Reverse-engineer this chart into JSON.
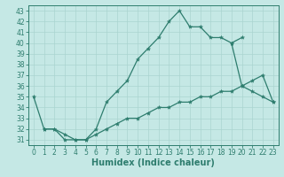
{
  "xlabel": "Humidex (Indice chaleur)",
  "bg_color": "#c5e8e5",
  "line_color": "#2e7d6e",
  "grid_color": "#aad4d0",
  "xlim": [
    -0.5,
    23.5
  ],
  "ylim": [
    30.5,
    43.5
  ],
  "yticks": [
    31,
    32,
    33,
    34,
    35,
    36,
    37,
    38,
    39,
    40,
    41,
    42,
    43
  ],
  "xticks": [
    0,
    1,
    2,
    3,
    4,
    5,
    6,
    7,
    8,
    9,
    10,
    11,
    12,
    13,
    14,
    15,
    16,
    17,
    18,
    19,
    20,
    21,
    22,
    23
  ],
  "lines": [
    {
      "x": [
        0,
        1,
        2,
        3,
        4,
        5,
        6,
        7,
        8,
        9,
        10,
        11,
        12,
        13,
        14,
        15,
        16,
        17,
        18,
        19,
        20
      ],
      "y": [
        35,
        32,
        32,
        31,
        31,
        31,
        32,
        34.5,
        35.5,
        36.5,
        38.5,
        39.5,
        40.5,
        42,
        43,
        41.5,
        41.5,
        40.5,
        40.5,
        40,
        40.5
      ]
    },
    {
      "x": [
        19,
        20,
        21,
        22,
        23
      ],
      "y": [
        40,
        36,
        35.5,
        35,
        34.5
      ]
    },
    {
      "x": [
        1,
        2,
        3,
        4,
        5,
        6,
        7,
        8,
        9,
        10,
        11,
        12,
        13,
        14,
        15,
        16,
        17,
        18,
        19,
        20,
        21,
        22,
        23
      ],
      "y": [
        32,
        32,
        31.5,
        31,
        31,
        31.5,
        32,
        32.5,
        33,
        33,
        33.5,
        34,
        34,
        34.5,
        34.5,
        35,
        35,
        35.5,
        35.5,
        36,
        36.5,
        37,
        34.5
      ]
    }
  ],
  "tick_fontsize": 5.5,
  "label_fontsize": 7
}
